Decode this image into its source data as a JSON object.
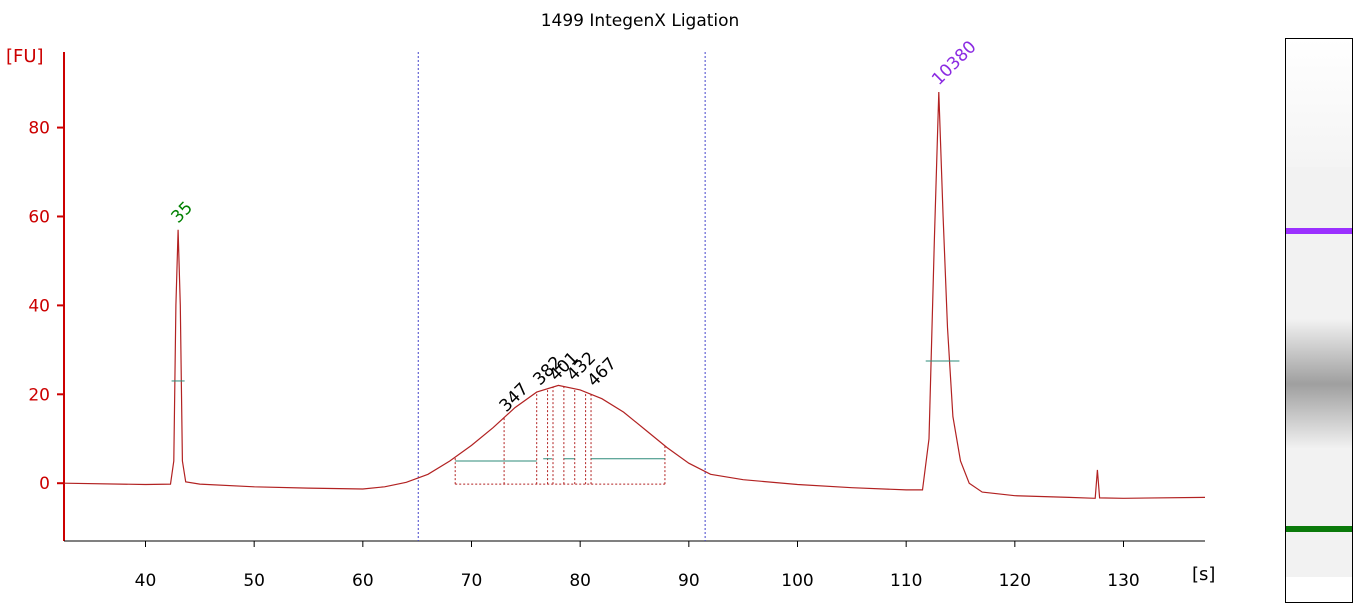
{
  "chart_data": {
    "type": "line",
    "title": "1499 IntegenX Ligation",
    "ylabel": "[FU]",
    "xlabel": "[s]",
    "xlim": [
      32.5,
      137.5
    ],
    "ylim": [
      -13,
      97
    ],
    "x_ticks": [
      40,
      50,
      60,
      70,
      80,
      90,
      100,
      110,
      120,
      130
    ],
    "y_ticks": [
      0,
      20,
      40,
      60,
      80
    ],
    "colors": {
      "axis_y": "#cc0000",
      "trace": "#b22222",
      "lower_marker": "#008000",
      "upper_marker": "#8b2be2",
      "region_line": "#4444cc",
      "baseline_segment": "#2e8b7a"
    },
    "series": [
      {
        "points": [
          [
            32.5,
            0.0
          ],
          [
            40,
            -0.3
          ],
          [
            42.3,
            -0.2
          ],
          [
            42.6,
            5
          ],
          [
            42.8,
            40
          ],
          [
            43.0,
            57
          ],
          [
            43.2,
            40
          ],
          [
            43.4,
            5
          ],
          [
            43.7,
            0.3
          ],
          [
            45,
            -0.2
          ],
          [
            50,
            -0.8
          ],
          [
            55,
            -1.1
          ],
          [
            60,
            -1.3
          ],
          [
            62,
            -0.8
          ],
          [
            64,
            0.2
          ],
          [
            66,
            2
          ],
          [
            68,
            5
          ],
          [
            70,
            8.5
          ],
          [
            72,
            12.5
          ],
          [
            74,
            17
          ],
          [
            76,
            20.5
          ],
          [
            78,
            22
          ],
          [
            80,
            21
          ],
          [
            82,
            19
          ],
          [
            84,
            16
          ],
          [
            86,
            12
          ],
          [
            88,
            8
          ],
          [
            90,
            4.5
          ],
          [
            92,
            2
          ],
          [
            95,
            0.8
          ],
          [
            100,
            -0.3
          ],
          [
            105,
            -1
          ],
          [
            110,
            -1.5
          ],
          [
            111.5,
            -1.5
          ],
          [
            112.1,
            10
          ],
          [
            112.6,
            55
          ],
          [
            113.0,
            88
          ],
          [
            113.4,
            60
          ],
          [
            113.8,
            35
          ],
          [
            114.3,
            15
          ],
          [
            115,
            5
          ],
          [
            115.8,
            0
          ],
          [
            117,
            -2
          ],
          [
            120,
            -2.8
          ],
          [
            125,
            -3.2
          ],
          [
            127.4,
            -3.4
          ],
          [
            127.6,
            3
          ],
          [
            127.8,
            -3.3
          ],
          [
            130,
            -3.4
          ],
          [
            137.5,
            -3.2
          ]
        ]
      }
    ],
    "peak_labels": [
      {
        "text": "35",
        "x": 43.0,
        "y": 57,
        "role": "lower_marker"
      },
      {
        "text": "10380",
        "x": 113.0,
        "y": 88,
        "role": "upper_marker"
      },
      {
        "text": "347",
        "x": 73.2,
        "y": 14.5,
        "role": "fragment"
      },
      {
        "text": "382",
        "x": 76.3,
        "y": 20.5,
        "role": "fragment"
      },
      {
        "text": "401",
        "x": 77.8,
        "y": 21.5,
        "role": "fragment"
      },
      {
        "text": "432",
        "x": 79.4,
        "y": 21.5,
        "role": "fragment"
      },
      {
        "text": "467",
        "x": 81.3,
        "y": 20.2,
        "role": "fragment"
      }
    ],
    "region_lines_x": [
      65.1,
      91.5
    ],
    "fragment_boundaries_x": [
      68.5,
      73.0,
      76.0,
      77.0,
      77.5,
      78.5,
      79.5,
      80.5,
      81.0,
      87.8
    ],
    "peak_baselines": [
      {
        "x1": 42.4,
        "x2": 43.6,
        "y": 23
      },
      {
        "x1": 111.8,
        "x2": 114.9,
        "y": 27.5
      },
      {
        "x1": 68.5,
        "x2": 76.0,
        "y": 5
      },
      {
        "x1": 76.6,
        "x2": 77.4,
        "y": 5.5
      },
      {
        "x1": 78.5,
        "x2": 79.5,
        "y": 5.5
      },
      {
        "x1": 81.0,
        "x2": 87.8,
        "y": 5.5
      }
    ],
    "gel": {
      "upper_marker_color": "#9b30ff",
      "lower_marker_color": "#0a7a0a",
      "smear_color": "#a6a6a6"
    }
  }
}
